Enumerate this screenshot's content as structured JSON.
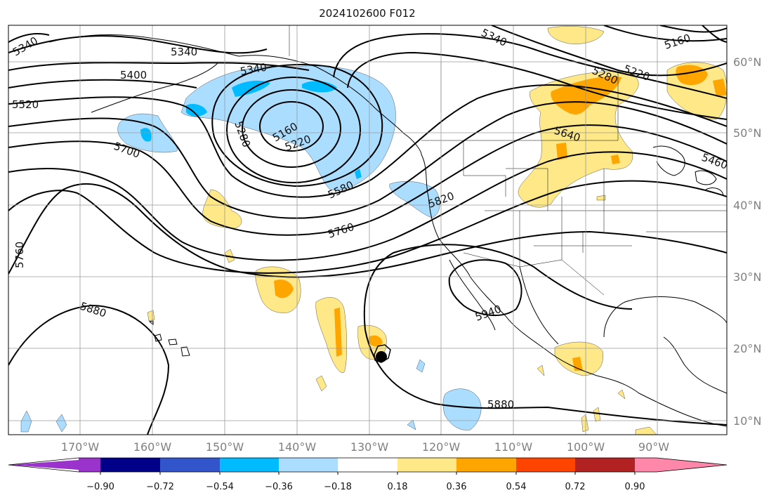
{
  "title": "2024102600 F012",
  "colors": {
    "land_fill": "#ffffff",
    "ocean_fill": "#ffffff",
    "grid": "#9a9a9a",
    "axis_label": "#808080",
    "contour": "#000000"
  },
  "lon_labels": [
    "170°W",
    "160°W",
    "150°W",
    "140°W",
    "130°W",
    "120°W",
    "110°W",
    "100°W",
    "90°W"
  ],
  "lat_labels": [
    "60°N",
    "50°N",
    "40°N",
    "30°N",
    "20°N",
    "10°N"
  ],
  "contour_labels": [
    "5340",
    "5340",
    "5340",
    "5340",
    "5160",
    "5400",
    "5280",
    "5220",
    "5520",
    "5160",
    "5280",
    "5220",
    "5700",
    "5640",
    "5460",
    "5580",
    "5820",
    "5760",
    "5760",
    "5880",
    "5940",
    "5880"
  ],
  "colorbar": {
    "colors": [
      "#9933cc",
      "#000088",
      "#3355cc",
      "#00bbff",
      "#aaddff",
      "#ffffff",
      "#ffe888",
      "#ffa500",
      "#ff4400",
      "#b22222",
      "#ff88aa"
    ],
    "tick_labels": [
      "−0.90",
      "−0.72",
      "−0.54",
      "−0.36",
      "−0.18",
      "0.18",
      "0.36",
      "0.54",
      "0.72",
      "0.90"
    ]
  },
  "hurricane_symbol": "cyclone-icon"
}
